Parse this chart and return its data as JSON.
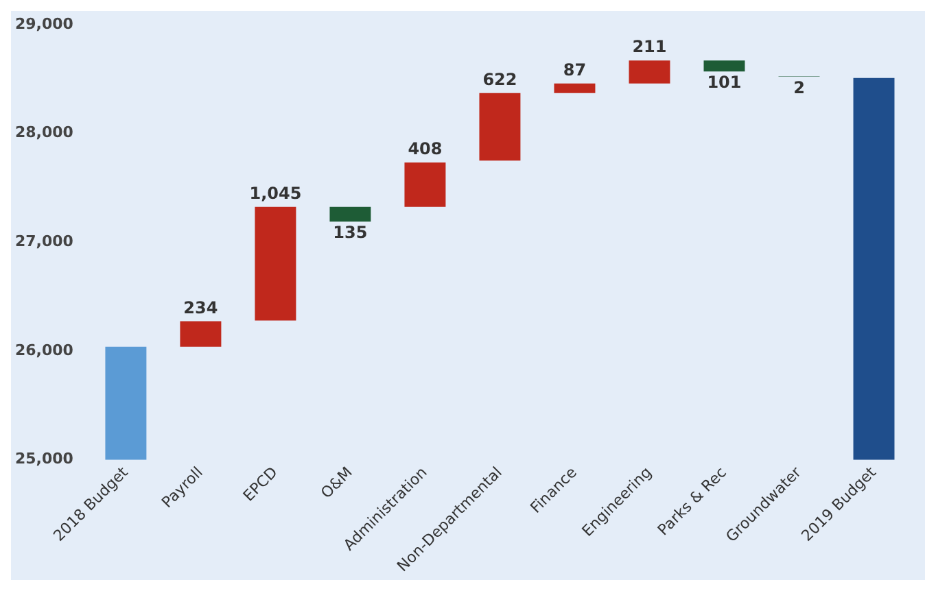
{
  "chart_data": {
    "type": "bar",
    "categories": [
      "2018 Budget",
      "Payroll",
      "EPCD",
      "O&M",
      "Administration",
      "Non-Departmental",
      "Finance",
      "Engineering",
      "Parks & Rec",
      "Groundwater",
      "2019 Budget"
    ],
    "values": [
      1040,
      234,
      1045,
      -135,
      408,
      622,
      87,
      211,
      -101,
      -2,
      3510
    ],
    "base": [
      25000,
      26040,
      26280,
      27325,
      27325,
      27750,
      28372,
      28460,
      28671,
      28525,
      25000
    ],
    "colors": [
      "#5b9bd5",
      "#c0281c",
      "#c0281c",
      "#1e5c36",
      "#c0281c",
      "#c0281c",
      "#c0281c",
      "#c0281c",
      "#1e5c36",
      "#1e5c36",
      "#1f4e8c"
    ],
    "value_labels": [
      null,
      "234",
      "1,045",
      "135",
      "408",
      "622",
      "87",
      "211",
      "101",
      "2",
      null
    ],
    "ylim": [
      25000,
      29000
    ],
    "yticks": [
      {
        "value": 25000,
        "label": "25,000"
      },
      {
        "value": 26000,
        "label": "26,000"
      },
      {
        "value": 27000,
        "label": "27,000"
      },
      {
        "value": 28000,
        "label": "28,000"
      },
      {
        "value": 29000,
        "label": "29,000"
      }
    ],
    "grid": false,
    "legend": false
  }
}
